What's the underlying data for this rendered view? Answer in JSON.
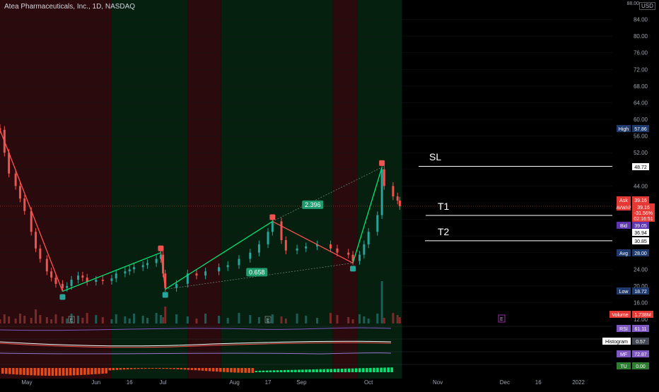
{
  "header": {
    "title": "Atea Pharmaceuticals, Inc., 1D, NASDAQ",
    "currency": "USD",
    "top_tick": "88.00"
  },
  "price_axis": {
    "ticks": [
      "84.00",
      "80.00",
      "76.00",
      "72.00",
      "68.00",
      "64.00",
      "60.00",
      "56.00",
      "52.00",
      "44.00",
      "24.00",
      "20.00",
      "16.00",
      "12.00"
    ]
  },
  "time_axis": {
    "labels": [
      "May",
      "Jun",
      "16",
      "Jul",
      "Aug",
      "17",
      "Sep",
      "Oct",
      "Nov",
      "Dec",
      "16",
      "2022"
    ]
  },
  "price_labels": {
    "high": {
      "label": "High",
      "value": "57.86"
    },
    "sl": {
      "value": "48.72"
    },
    "ask": {
      "label": "Ask",
      "value": "39.16"
    },
    "avwap": {
      "label": "AVWAP",
      "value": "39.16",
      "change": "-31.56%",
      "countdown": "02:16:51"
    },
    "bid": {
      "label": "Bid",
      "value": "39.05"
    },
    "t1": {
      "value": "36.94"
    },
    "t2": {
      "value": "30.85"
    },
    "avg": {
      "label": "Avg",
      "value": "28.00"
    },
    "low": {
      "label": "Low",
      "value": "18.72"
    },
    "volume": {
      "label": "Volume",
      "value": "1.738M"
    }
  },
  "annotations": {
    "sl": "SL",
    "t1": "T1",
    "t2": "T2",
    "ratio_top": "2.396",
    "ratio_bottom": "0.658",
    "earnings": "E"
  },
  "indicators": {
    "rsi": {
      "label": "RSI",
      "value": "61.11"
    },
    "macd": {
      "label": "Histogram",
      "value": "0.57"
    },
    "mf": {
      "label": "MF",
      "value": "72.87"
    },
    "last": {
      "label": "TU",
      "value": "0.00"
    }
  },
  "colors": {
    "up": "#26a69a",
    "down": "#ef5350",
    "bg_red": "#2a0a0c",
    "bg_green": "#06200f",
    "zigzag_up": "#00e676",
    "zigzag_down": "#ff5252"
  },
  "chart_data": {
    "type": "candlestick",
    "x_range": [
      "2021-04-19",
      "2022-01-15"
    ],
    "ylim": [
      12,
      88
    ],
    "date_ticks": [
      {
        "label": "May",
        "date": "2021-05-01"
      },
      {
        "label": "Jun",
        "date": "2021-06-01"
      },
      {
        "label": "16",
        "date": "2021-06-16"
      },
      {
        "label": "Jul",
        "date": "2021-07-01"
      },
      {
        "label": "Aug",
        "date": "2021-08-02"
      },
      {
        "label": "17",
        "date": "2021-08-17"
      },
      {
        "label": "Sep",
        "date": "2021-09-01"
      },
      {
        "label": "Oct",
        "date": "2021-10-01"
      },
      {
        "label": "Nov",
        "date": "2021-11-01"
      },
      {
        "label": "Dec",
        "date": "2021-12-01"
      },
      {
        "label": "16",
        "date": "2021-12-16"
      },
      {
        "label": "2022",
        "date": "2022-01-03"
      }
    ],
    "price_levels": {
      "high": 57.86,
      "sl": 48.72,
      "last": 39.16,
      "bid": 39.05,
      "t1": 36.94,
      "t2": 30.85,
      "avg": 28.0,
      "low": 18.72
    },
    "closes": [
      {
        "date": "2021-04-19",
        "close": 57.5
      },
      {
        "date": "2021-04-21",
        "close": 52
      },
      {
        "date": "2021-04-23",
        "close": 47
      },
      {
        "date": "2021-04-26",
        "close": 44
      },
      {
        "date": "2021-04-28",
        "close": 41
      },
      {
        "date": "2021-04-30",
        "close": 38
      },
      {
        "date": "2021-05-03",
        "close": 33
      },
      {
        "date": "2021-05-05",
        "close": 29
      },
      {
        "date": "2021-05-07",
        "close": 26.5
      },
      {
        "date": "2021-05-10",
        "close": 23.5
      },
      {
        "date": "2021-05-12",
        "close": 22
      },
      {
        "date": "2021-05-14",
        "close": 20.5
      },
      {
        "date": "2021-05-17",
        "close": 19.5
      },
      {
        "date": "2021-05-19",
        "close": 20
      },
      {
        "date": "2021-05-21",
        "close": 21.5
      },
      {
        "date": "2021-05-24",
        "close": 22.5
      },
      {
        "date": "2021-05-26",
        "close": 22
      },
      {
        "date": "2021-05-28",
        "close": 21
      },
      {
        "date": "2021-06-01",
        "close": 21.5
      },
      {
        "date": "2021-06-04",
        "close": 21.2
      },
      {
        "date": "2021-06-08",
        "close": 21.8
      },
      {
        "date": "2021-06-10",
        "close": 23
      },
      {
        "date": "2021-06-14",
        "close": 23.5
      },
      {
        "date": "2021-06-16",
        "close": 24
      },
      {
        "date": "2021-06-18",
        "close": 24.5
      },
      {
        "date": "2021-06-22",
        "close": 25
      },
      {
        "date": "2021-06-24",
        "close": 25.5
      },
      {
        "date": "2021-06-28",
        "close": 26.5
      },
      {
        "date": "2021-06-30",
        "close": 27.5
      },
      {
        "date": "2021-07-01",
        "close": 23
      },
      {
        "date": "2021-07-02",
        "close": 19.5
      },
      {
        "date": "2021-07-07",
        "close": 20.5
      },
      {
        "date": "2021-07-12",
        "close": 23
      },
      {
        "date": "2021-07-16",
        "close": 22.5
      },
      {
        "date": "2021-07-20",
        "close": 23.5
      },
      {
        "date": "2021-07-26",
        "close": 24.5
      },
      {
        "date": "2021-07-30",
        "close": 25
      },
      {
        "date": "2021-08-04",
        "close": 26.5
      },
      {
        "date": "2021-08-09",
        "close": 28
      },
      {
        "date": "2021-08-13",
        "close": 30
      },
      {
        "date": "2021-08-17",
        "close": 33
      },
      {
        "date": "2021-08-19",
        "close": 35.5
      },
      {
        "date": "2021-08-23",
        "close": 31
      },
      {
        "date": "2021-08-25",
        "close": 28.5
      },
      {
        "date": "2021-08-30",
        "close": 29
      },
      {
        "date": "2021-09-03",
        "close": 29.5
      },
      {
        "date": "2021-09-08",
        "close": 30
      },
      {
        "date": "2021-09-14",
        "close": 29
      },
      {
        "date": "2021-09-17",
        "close": 28
      },
      {
        "date": "2021-09-22",
        "close": 27.5
      },
      {
        "date": "2021-09-24",
        "close": 26
      },
      {
        "date": "2021-09-27",
        "close": 27.5
      },
      {
        "date": "2021-09-29",
        "close": 30
      },
      {
        "date": "2021-10-01",
        "close": 33
      },
      {
        "date": "2021-10-05",
        "close": 37
      },
      {
        "date": "2021-10-07",
        "close": 48
      },
      {
        "date": "2021-10-08",
        "close": 44
      },
      {
        "date": "2021-10-12",
        "close": 41.5
      },
      {
        "date": "2021-10-14",
        "close": 40.5
      },
      {
        "date": "2021-10-15",
        "close": 39.16
      }
    ],
    "zigzag": [
      {
        "date": "2021-04-19",
        "price": 57.5
      },
      {
        "date": "2021-05-17",
        "price": 18.7
      },
      {
        "date": "2021-06-30",
        "price": 28
      },
      {
        "date": "2021-07-02",
        "price": 19.2
      },
      {
        "date": "2021-08-19",
        "price": 35.5
      },
      {
        "date": "2021-09-24",
        "price": 25.5
      },
      {
        "date": "2021-10-07",
        "price": 48.5
      }
    ]
  }
}
